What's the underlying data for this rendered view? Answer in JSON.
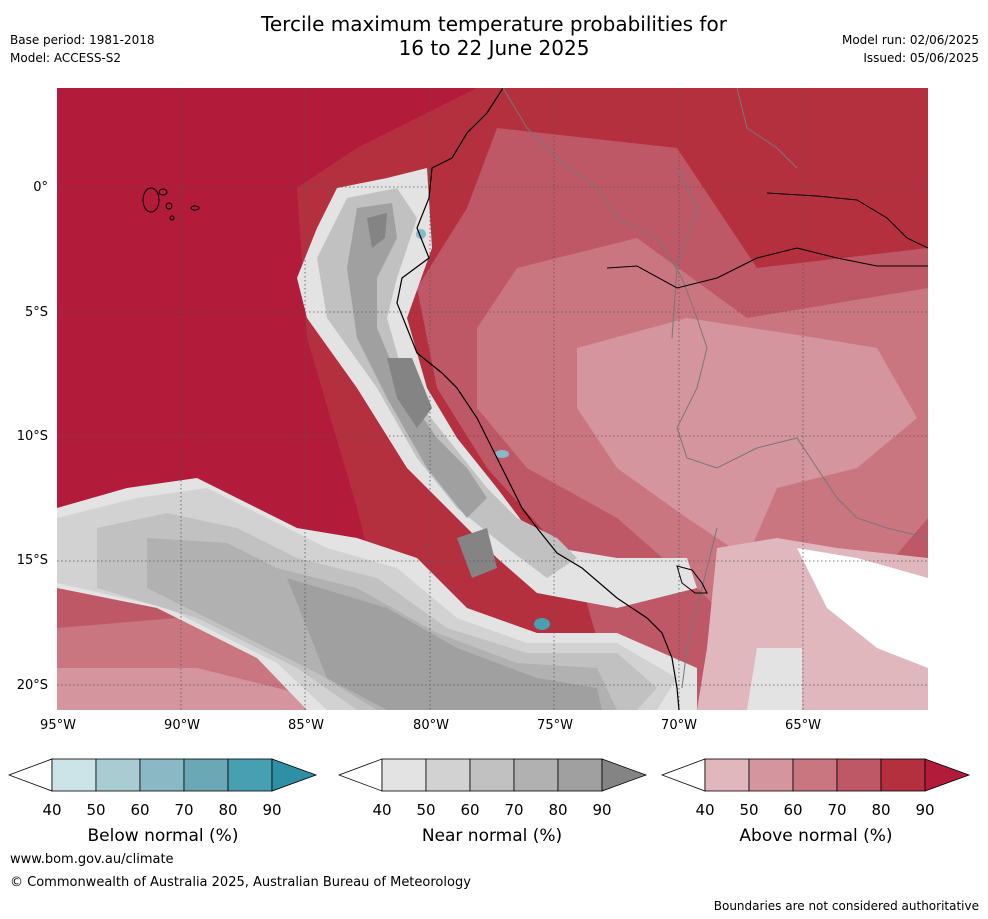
{
  "header": {
    "base_period": "Base period: 1981-2018",
    "model": "Model: ACCESS-S2",
    "title_line1": "Tercile maximum temperature probabilities for",
    "title_line2": "16 to 22 June 2025",
    "model_run": "Model run: 02/06/2025",
    "issued": "Issued: 05/06/2025"
  },
  "map": {
    "lat_labels": [
      "0°",
      "5°S",
      "10°S",
      "15°S",
      "20°S"
    ],
    "lon_labels": [
      "95°W",
      "90°W",
      "85°W",
      "80°W",
      "75°W",
      "70°W",
      "65°W"
    ]
  },
  "colorbars": [
    {
      "title": "Below normal (%)",
      "ticks": [
        "40",
        "50",
        "60",
        "70",
        "80",
        "90"
      ],
      "colors": [
        "#ffffff",
        "#cce3e8",
        "#a9cbd2",
        "#8ab8c4",
        "#6aa8b6",
        "#46a0b2",
        "#2e8fa5"
      ]
    },
    {
      "title": "Near normal (%)",
      "ticks": [
        "40",
        "50",
        "60",
        "70",
        "80",
        "90"
      ],
      "colors": [
        "#ffffff",
        "#e3e3e3",
        "#d2d2d2",
        "#c1c1c1",
        "#b1b1b1",
        "#a0a0a0",
        "#848484"
      ]
    },
    {
      "title": "Above normal (%)",
      "ticks": [
        "40",
        "50",
        "60",
        "70",
        "80",
        "90"
      ],
      "colors": [
        "#ffffff",
        "#e0b7bd",
        "#d4959e",
        "#c97681",
        "#be5866",
        "#b4303f",
        "#b21c3a"
      ]
    }
  ],
  "footer": {
    "website": "www.bom.gov.au/climate",
    "copyright": "© Commonwealth of Australia 2025, Australian Bureau of Meteorology",
    "disclaimer": "Boundaries are not considered authoritative"
  }
}
